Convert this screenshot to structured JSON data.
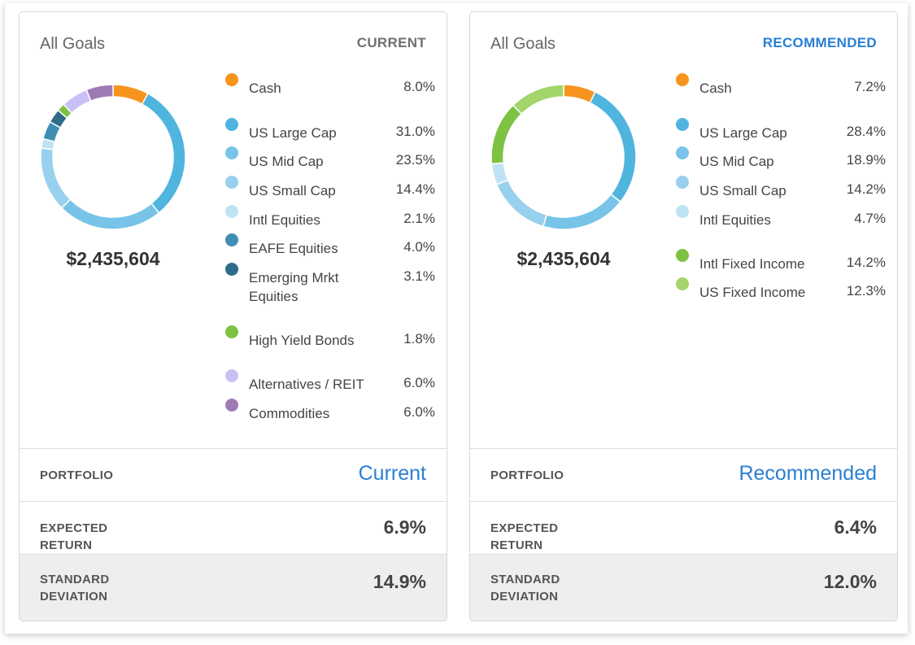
{
  "colors": {
    "orange": "#f7941d",
    "blue_dark": "#4fb5df",
    "blue_mid": "#77c4e8",
    "blue_light": "#99d0ee",
    "blue_pale": "#bfe3f5",
    "teal": "#3e8fb3",
    "navy_teal": "#2f6c8a",
    "green": "#7dc242",
    "green_light": "#a3d56a",
    "lavender": "#c9c1f5",
    "purple": "#9e7bb5",
    "accent": "#2a7fd4"
  },
  "panels": [
    {
      "goal_label": "All Goals",
      "badge": "CURRENT",
      "total": "$2,435,604",
      "chart_data": {
        "type": "pie",
        "categories": [
          "Cash",
          "US Large Cap",
          "US Mid Cap",
          "US Small Cap",
          "Intl Equities",
          "EAFE Equities",
          "Emerging Mrkt Equities",
          "High Yield Bonds",
          "Alternatives / REIT",
          "Commodities"
        ],
        "values": [
          8.0,
          31.0,
          23.5,
          14.4,
          2.1,
          4.0,
          3.1,
          1.8,
          6.0,
          6.0
        ],
        "colors": [
          "#f7941d",
          "#4fb5df",
          "#77c4e8",
          "#99d0ee",
          "#bfe3f5",
          "#3e8fb3",
          "#2f6c8a",
          "#7dc242",
          "#c9c1f5",
          "#9e7bb5"
        ],
        "donut": true
      },
      "legend": [
        {
          "name": "Cash",
          "value": "8.0%",
          "color": "#f7941d"
        },
        {
          "name": "US Large Cap",
          "value": "31.0%",
          "color": "#4fb5df"
        },
        {
          "name": "US Mid Cap",
          "value": "23.5%",
          "color": "#77c4e8"
        },
        {
          "name": "US Small Cap",
          "value": "14.4%",
          "color": "#99d0ee"
        },
        {
          "name": "Intl Equities",
          "value": "2.1%",
          "color": "#bfe3f5"
        },
        {
          "name": "EAFE Equities",
          "value": "4.0%",
          "color": "#3e8fb3"
        },
        {
          "name": "Emerging Mrkt Equities",
          "value": "3.1%",
          "color": "#2f6c8a"
        },
        {
          "name": "High Yield Bonds",
          "value": "1.8%",
          "color": "#7dc242"
        },
        {
          "name": "Alternatives / REIT",
          "value": "6.0%",
          "color": "#c9c1f5"
        },
        {
          "name": "Commodities",
          "value": "6.0%",
          "color": "#9e7bb5"
        }
      ],
      "portfolio_label": "PORTFOLIO",
      "portfolio_value": "Current",
      "return_label": "EXPECTED RETURN",
      "return_value": "6.9%",
      "std_label": "STANDARD DEVIATION",
      "std_value": "14.9%"
    },
    {
      "goal_label": "All Goals",
      "badge": "RECOMMENDED",
      "total": "$2,435,604",
      "chart_data": {
        "type": "pie",
        "categories": [
          "Cash",
          "US Large Cap",
          "US Mid Cap",
          "US Small Cap",
          "Intl Equities",
          "Intl Fixed Income",
          "US Fixed Income"
        ],
        "values": [
          7.2,
          28.4,
          18.9,
          14.2,
          4.7,
          14.2,
          12.3
        ],
        "colors": [
          "#f7941d",
          "#4fb5df",
          "#77c4e8",
          "#99d0ee",
          "#bfe3f5",
          "#7dc242",
          "#a3d56a"
        ],
        "donut": true
      },
      "legend": [
        {
          "name": "Cash",
          "value": "7.2%",
          "color": "#f7941d"
        },
        {
          "name": "US Large Cap",
          "value": "28.4%",
          "color": "#4fb5df"
        },
        {
          "name": "US Mid Cap",
          "value": "18.9%",
          "color": "#77c4e8"
        },
        {
          "name": "US Small Cap",
          "value": "14.2%",
          "color": "#99d0ee"
        },
        {
          "name": "Intl Equities",
          "value": "4.7%",
          "color": "#bfe3f5"
        },
        {
          "name": "Intl Fixed Income",
          "value": "14.2%",
          "color": "#7dc242"
        },
        {
          "name": "US Fixed Income",
          "value": "12.3%",
          "color": "#a3d56a"
        }
      ],
      "portfolio_label": "PORTFOLIO",
      "portfolio_value": "Recommended",
      "return_label": "EXPECTED RETURN",
      "return_value": "6.4%",
      "std_label": "STANDARD DEVIATION",
      "std_value": "12.0%"
    }
  ]
}
